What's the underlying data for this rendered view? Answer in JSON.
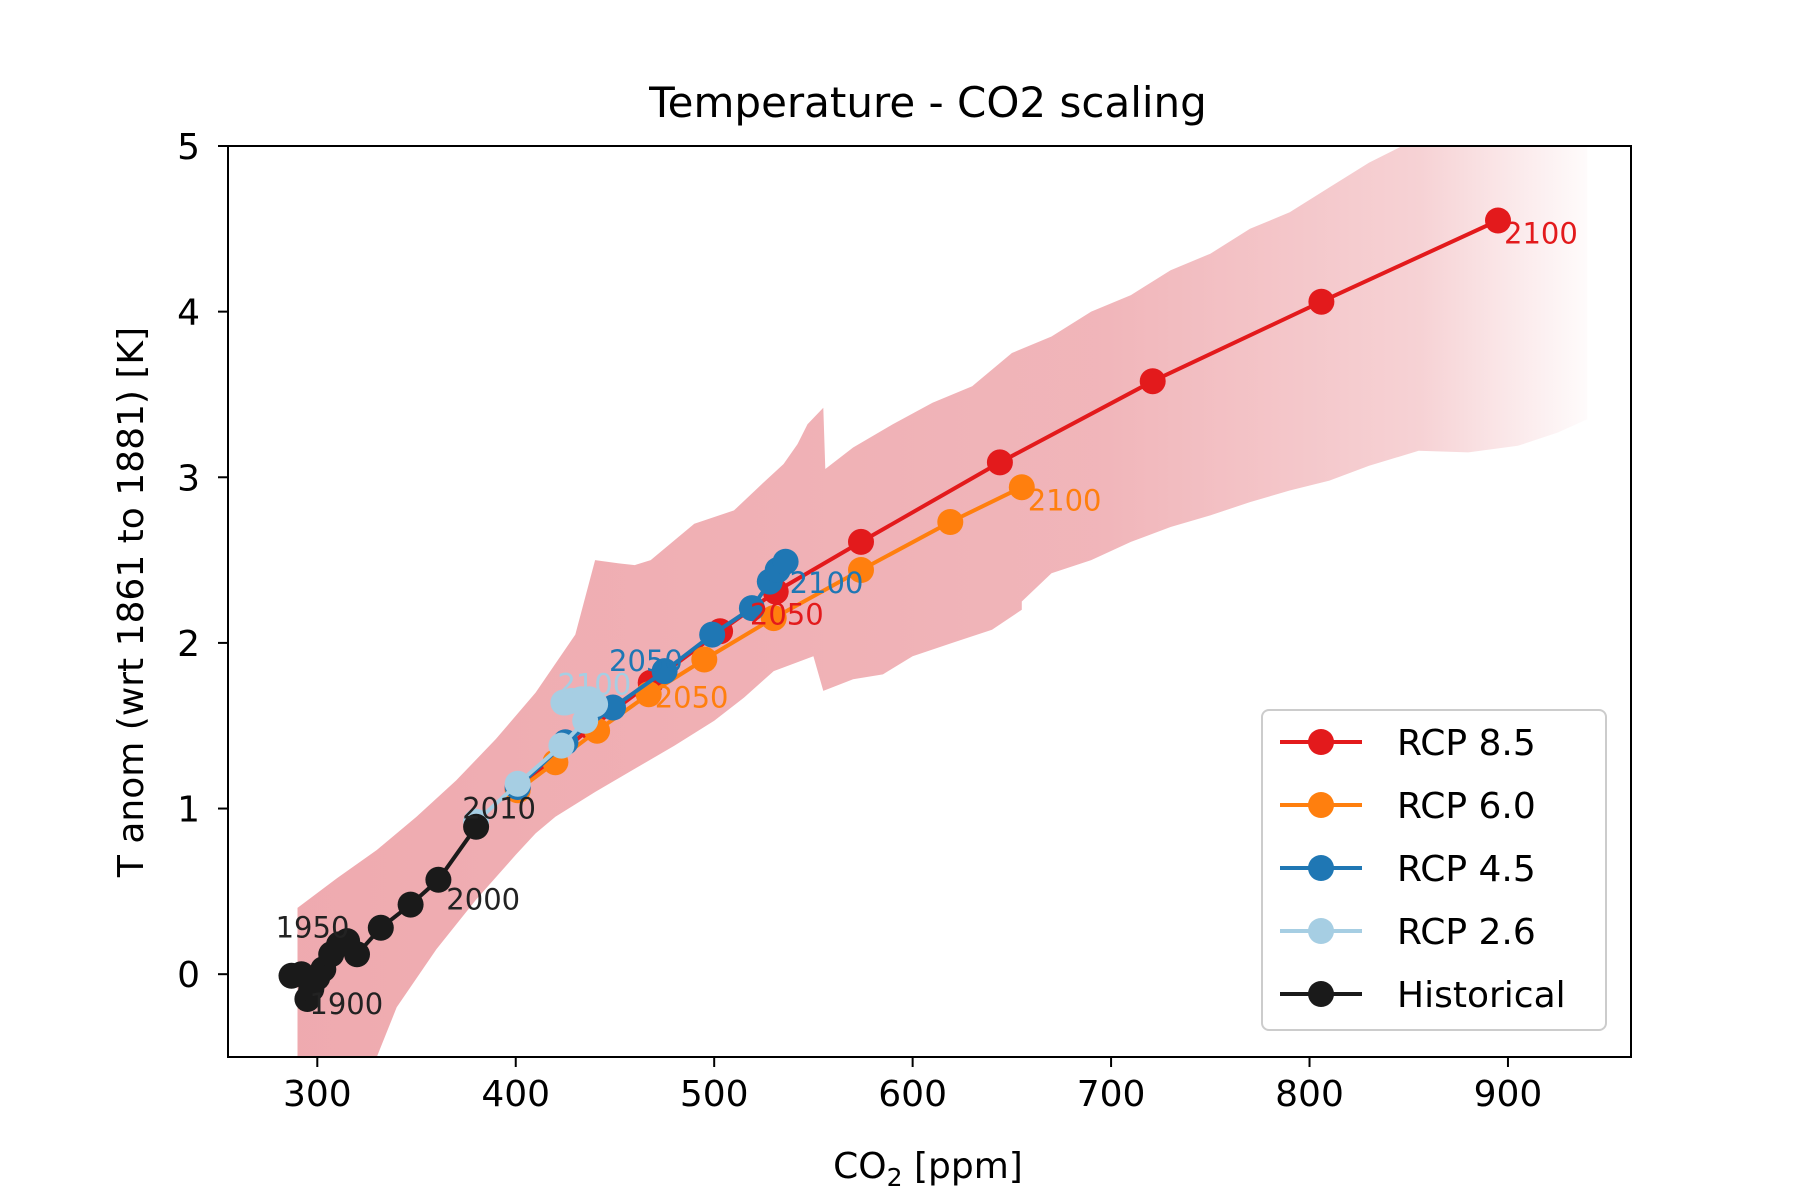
{
  "chart_data": {
    "type": "line",
    "title": "Temperature - CO2 scaling",
    "xlabel": "CO₂ [ppm]",
    "ylabel": "T anom (wrt 1861 to 1881) [K]",
    "xlim": [
      255,
      962
    ],
    "ylim": [
      -0.5,
      5
    ],
    "xticks": [
      300,
      400,
      500,
      600,
      700,
      800,
      900
    ],
    "yticks": [
      0,
      1,
      2,
      3,
      4,
      5
    ],
    "grid": false,
    "legend_position": "lower-right",
    "band": {
      "color": "#e8888f",
      "upper": [
        [
          290,
          0.4
        ],
        [
          310,
          0.58
        ],
        [
          330,
          0.75
        ],
        [
          350,
          0.95
        ],
        [
          370,
          1.17
        ],
        [
          390,
          1.42
        ],
        [
          410,
          1.7
        ],
        [
          430,
          2.05
        ],
        [
          440,
          2.5
        ],
        [
          452,
          2.48
        ],
        [
          460,
          2.47
        ],
        [
          468,
          2.5
        ],
        [
          480,
          2.62
        ],
        [
          490,
          2.72
        ],
        [
          510,
          2.8
        ],
        [
          525,
          2.97
        ],
        [
          535,
          3.08
        ],
        [
          542,
          3.2
        ],
        [
          547,
          3.32
        ],
        [
          555,
          3.42
        ],
        [
          556,
          3.05
        ],
        [
          570,
          3.18
        ],
        [
          590,
          3.32
        ],
        [
          610,
          3.45
        ],
        [
          630,
          3.55
        ],
        [
          650,
          3.75
        ],
        [
          670,
          3.85
        ],
        [
          690,
          4.0
        ],
        [
          710,
          4.1
        ],
        [
          730,
          4.25
        ],
        [
          750,
          4.35
        ],
        [
          770,
          4.5
        ],
        [
          790,
          4.6
        ],
        [
          810,
          4.75
        ],
        [
          830,
          4.9
        ],
        [
          855,
          5.05
        ],
        [
          880,
          5.22
        ],
        [
          905,
          5.35
        ],
        [
          925,
          5.45
        ],
        [
          940,
          5.5
        ]
      ],
      "lower": [
        [
          940,
          3.35
        ],
        [
          925,
          3.27
        ],
        [
          905,
          3.19
        ],
        [
          880,
          3.15
        ],
        [
          855,
          3.16
        ],
        [
          830,
          3.07
        ],
        [
          810,
          2.98
        ],
        [
          790,
          2.92
        ],
        [
          770,
          2.85
        ],
        [
          750,
          2.77
        ],
        [
          730,
          2.7
        ],
        [
          710,
          2.61
        ],
        [
          690,
          2.5
        ],
        [
          670,
          2.42
        ],
        [
          655,
          2.25
        ],
        [
          655,
          2.2
        ],
        [
          640,
          2.08
        ],
        [
          620,
          2.0
        ],
        [
          600,
          1.92
        ],
        [
          585,
          1.81
        ],
        [
          570,
          1.78
        ],
        [
          555,
          1.71
        ],
        [
          550,
          1.92
        ],
        [
          530,
          1.83
        ],
        [
          515,
          1.67
        ],
        [
          500,
          1.53
        ],
        [
          480,
          1.38
        ],
        [
          460,
          1.24
        ],
        [
          440,
          1.1
        ],
        [
          420,
          0.95
        ],
        [
          410,
          0.85
        ],
        [
          400,
          0.72
        ],
        [
          380,
          0.45
        ],
        [
          360,
          0.15
        ],
        [
          340,
          -0.2
        ],
        [
          330,
          -0.5
        ],
        [
          290,
          -0.5
        ]
      ]
    },
    "series": [
      {
        "name": "RCP 8.5",
        "color": "#e31a1c",
        "x": [
          401,
          438,
          468,
          503,
          531,
          574,
          644,
          721,
          806,
          895
        ],
        "y": [
          1.12,
          1.49,
          1.76,
          2.07,
          2.31,
          2.61,
          3.09,
          3.58,
          4.06,
          4.55
        ],
        "labels": [
          {
            "text": "2050",
            "x": 518,
            "y": 2.11
          },
          {
            "text": "2100",
            "x": 898,
            "y": 4.41
          }
        ]
      },
      {
        "name": "RCP 6.0",
        "color": "#ff7f0e",
        "x": [
          401,
          420,
          441,
          467,
          495,
          530,
          574,
          619,
          655
        ],
        "y": [
          1.11,
          1.28,
          1.47,
          1.69,
          1.9,
          2.15,
          2.44,
          2.73,
          2.94
        ],
        "labels": [
          {
            "text": "2050",
            "x": 470,
            "y": 1.61
          },
          {
            "text": "2100",
            "x": 658,
            "y": 2.8
          }
        ]
      },
      {
        "name": "RCP 4.5",
        "color": "#1f77b4",
        "x": [
          401,
          425,
          449,
          475,
          499,
          519,
          528,
          532,
          536
        ],
        "y": [
          1.13,
          1.4,
          1.61,
          1.83,
          2.05,
          2.21,
          2.37,
          2.44,
          2.49
        ],
        "labels": [
          {
            "text": "2050",
            "x": 447,
            "y": 1.83
          },
          {
            "text": "2100",
            "x": 538,
            "y": 2.3
          }
        ]
      },
      {
        "name": "RCP 2.6",
        "color": "#a6cee3",
        "x": [
          380,
          401,
          423,
          435,
          440,
          437,
          433,
          428,
          425,
          424
        ],
        "y": [
          0.92,
          1.15,
          1.38,
          1.53,
          1.63,
          1.66,
          1.66,
          1.65,
          1.64,
          1.64
        ],
        "labels": [
          {
            "text": "2100",
            "x": 421,
            "y": 1.69
          }
        ]
      },
      {
        "name": "Historical",
        "color": "#1a1a1a",
        "x": [
          287,
          292,
          295,
          297,
          300,
          303,
          307,
          311,
          315,
          320,
          332,
          347,
          361,
          380
        ],
        "y": [
          -0.01,
          0.0,
          -0.15,
          -0.09,
          -0.02,
          0.03,
          0.12,
          0.18,
          0.2,
          0.12,
          0.28,
          0.42,
          0.57,
          0.89
        ],
        "labels": [
          {
            "text": "1950",
            "x": 279,
            "y": 0.22
          },
          {
            "text": "1900",
            "x": 296,
            "y": -0.24
          },
          {
            "text": "2000",
            "x": 365,
            "y": 0.39
          },
          {
            "text": "2010",
            "x": 373,
            "y": 0.94
          }
        ]
      }
    ]
  }
}
